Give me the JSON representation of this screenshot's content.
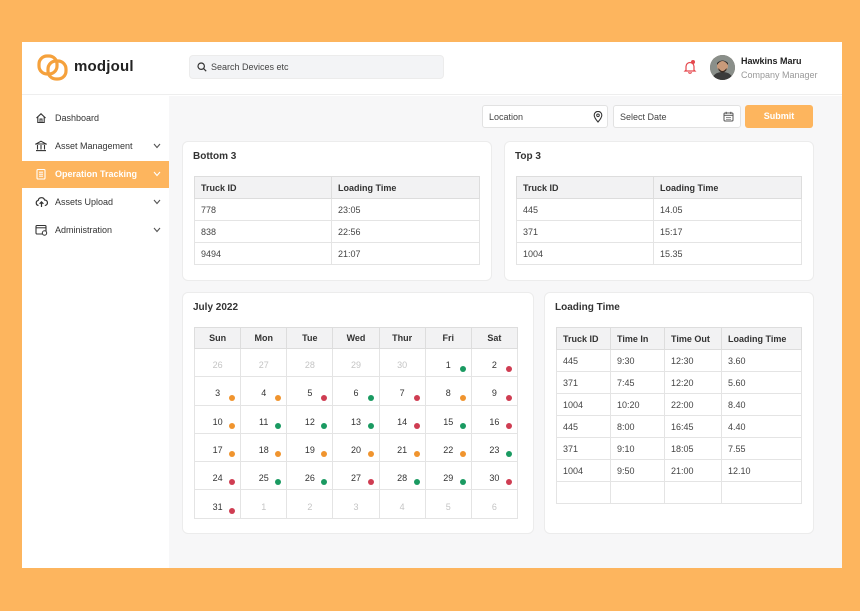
{
  "app": {
    "brand": "modjoul"
  },
  "search": {
    "placeholder": "Search Devices etc"
  },
  "user": {
    "name": "Hawkins Maru",
    "role": "Company Manager"
  },
  "sidebar": {
    "items": [
      {
        "label": "Dashboard",
        "icon": "home-icon",
        "active": false,
        "chevron": false
      },
      {
        "label": "Asset Management",
        "icon": "bank-icon",
        "active": false,
        "chevron": true
      },
      {
        "label": "Operation Tracking",
        "icon": "clipboard-icon",
        "active": true,
        "chevron": true
      },
      {
        "label": "Assets Upload",
        "icon": "cloud-upload-icon",
        "active": false,
        "chevron": true
      },
      {
        "label": "Administration",
        "icon": "admin-settings-icon",
        "active": false,
        "chevron": true
      }
    ]
  },
  "filters": {
    "location_label": "Location",
    "date_label": "Select Date",
    "submit_label": "Submit"
  },
  "bottom3": {
    "title": "Bottom 3",
    "headers": [
      "Truck ID",
      "Loading Time"
    ],
    "rows": [
      [
        "778",
        "23:05"
      ],
      [
        "838",
        "22:56"
      ],
      [
        "9494",
        "21:07"
      ]
    ]
  },
  "top3": {
    "title": "Top 3",
    "headers": [
      "Truck ID",
      "Loading Time"
    ],
    "rows": [
      [
        "445",
        "14.05"
      ],
      [
        "371",
        "15:17"
      ],
      [
        "1004",
        "15.35"
      ]
    ]
  },
  "calendar": {
    "title": "July 2022",
    "weekdays": [
      "Sun",
      "Mon",
      "Tue",
      "Wed",
      "Thur",
      "Fri",
      "Sat"
    ],
    "weeks": [
      [
        {
          "d": "26",
          "m": true
        },
        {
          "d": "27",
          "m": true
        },
        {
          "d": "28",
          "m": true
        },
        {
          "d": "29",
          "m": true
        },
        {
          "d": "30",
          "m": true
        },
        {
          "d": "1",
          "s": "green"
        },
        {
          "d": "2",
          "s": "red"
        }
      ],
      [
        {
          "d": "3",
          "s": "orange"
        },
        {
          "d": "4",
          "s": "orange"
        },
        {
          "d": "5",
          "s": "red"
        },
        {
          "d": "6",
          "s": "green"
        },
        {
          "d": "7",
          "s": "red"
        },
        {
          "d": "8",
          "s": "orange"
        },
        {
          "d": "9",
          "s": "red"
        }
      ],
      [
        {
          "d": "10",
          "s": "orange"
        },
        {
          "d": "11",
          "s": "green"
        },
        {
          "d": "12",
          "s": "green"
        },
        {
          "d": "13",
          "s": "green"
        },
        {
          "d": "14",
          "s": "red"
        },
        {
          "d": "15",
          "s": "green"
        },
        {
          "d": "16",
          "s": "red"
        }
      ],
      [
        {
          "d": "17",
          "s": "orange"
        },
        {
          "d": "18",
          "s": "orange"
        },
        {
          "d": "19",
          "s": "orange"
        },
        {
          "d": "20",
          "s": "orange"
        },
        {
          "d": "21",
          "s": "orange"
        },
        {
          "d": "22",
          "s": "orange"
        },
        {
          "d": "23",
          "s": "green"
        }
      ],
      [
        {
          "d": "24",
          "s": "red"
        },
        {
          "d": "25",
          "s": "green"
        },
        {
          "d": "26",
          "s": "green"
        },
        {
          "d": "27",
          "s": "red"
        },
        {
          "d": "28",
          "s": "green"
        },
        {
          "d": "29",
          "s": "green"
        },
        {
          "d": "30",
          "s": "red"
        }
      ],
      [
        {
          "d": "31",
          "s": "red"
        },
        {
          "d": "1",
          "m": true
        },
        {
          "d": "2",
          "m": true
        },
        {
          "d": "3",
          "m": true
        },
        {
          "d": "4",
          "m": true
        },
        {
          "d": "5",
          "m": true
        },
        {
          "d": "6",
          "m": true
        }
      ]
    ]
  },
  "loading": {
    "title": "Loading Time",
    "headers": [
      "Truck ID",
      "Time In",
      "Time Out",
      "Loading Time"
    ],
    "rows": [
      [
        "445",
        "9:30",
        "12:30",
        "3.60"
      ],
      [
        "371",
        "7:45",
        "12:20",
        "5.60"
      ],
      [
        "1004",
        "10:20",
        "22:00",
        "8.40"
      ],
      [
        "445",
        "8:00",
        "16:45",
        "4.40"
      ],
      [
        "371",
        "9:10",
        "18:05",
        "7.55"
      ],
      [
        "1004",
        "9:50",
        "21:00",
        "12.10"
      ],
      [
        "",
        "",
        "",
        ""
      ]
    ]
  },
  "colors": {
    "accent": "#FDB55E",
    "green": "#1a9a61",
    "orange": "#f0942e",
    "red": "#cf3d52"
  }
}
